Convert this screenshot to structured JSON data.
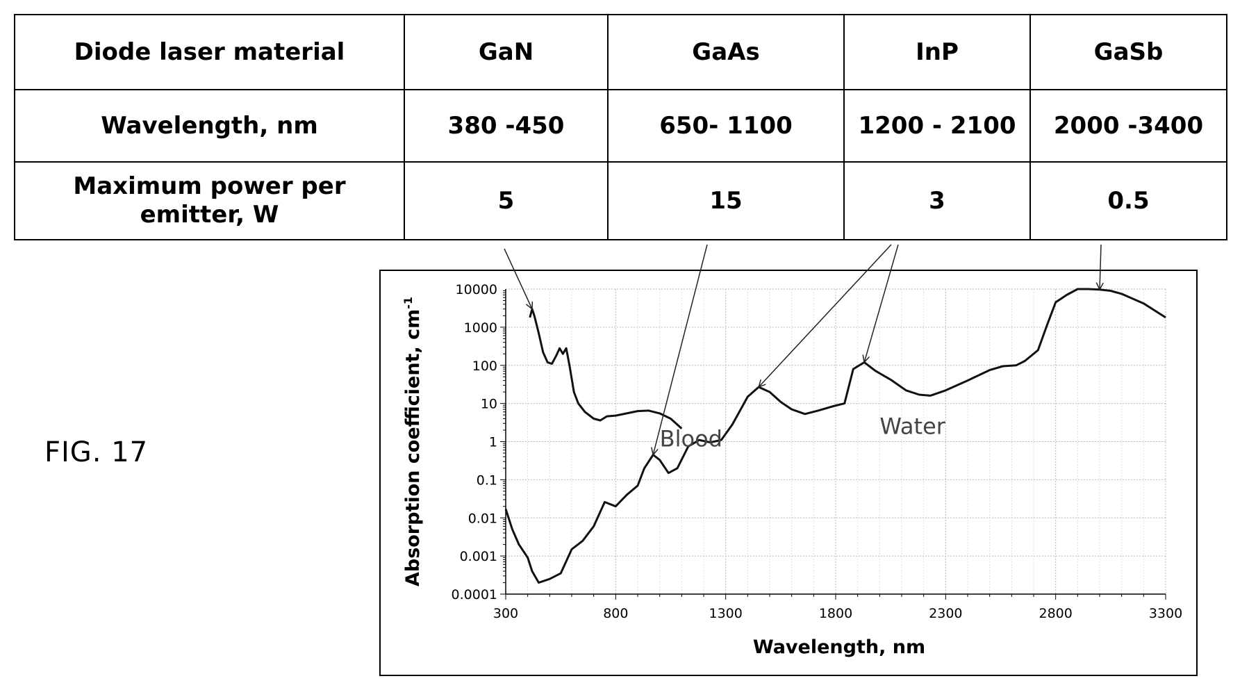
{
  "table": {
    "header": [
      "Diode laser material",
      "GaN",
      "GaAs",
      "InP",
      "GaSb"
    ],
    "rows": [
      [
        "Wavelength, nm",
        "380 -450",
        "650- 1100",
        "1200 - 2100",
        "2000 -3400"
      ],
      [
        "Maximum power per emitter, W",
        "5",
        "15",
        "3",
        "0.5"
      ]
    ]
  },
  "figure_label": "FIG. 17",
  "chart_data": {
    "type": "line",
    "xlabel": "Wavelength, nm",
    "ylabel": "Absorption coefficient, cm",
    "ylabel_superscript": "-1",
    "x_scale": "linear",
    "y_scale": "log",
    "xlim": [
      300,
      3300
    ],
    "ylim": [
      0.0001,
      10000
    ],
    "x_ticks": [
      "300",
      "800",
      "1300",
      "1800",
      "2300",
      "2800",
      "3300"
    ],
    "y_ticks": [
      "0.0001",
      "0.001",
      "0.01",
      "0.1",
      "1",
      "10",
      "100",
      "1000",
      "10000"
    ],
    "grid": true,
    "series": [
      {
        "name": "Blood",
        "points": [
          [
            410,
            1800
          ],
          [
            420,
            3000
          ],
          [
            430,
            2000
          ],
          [
            450,
            700
          ],
          [
            470,
            220
          ],
          [
            490,
            120
          ],
          [
            510,
            110
          ],
          [
            530,
            180
          ],
          [
            545,
            280
          ],
          [
            560,
            200
          ],
          [
            575,
            280
          ],
          [
            590,
            100
          ],
          [
            610,
            20
          ],
          [
            630,
            10
          ],
          [
            660,
            6
          ],
          [
            700,
            4
          ],
          [
            730,
            3.6
          ],
          [
            760,
            4.6
          ],
          [
            800,
            4.8
          ],
          [
            850,
            5.5
          ],
          [
            900,
            6.3
          ],
          [
            950,
            6.5
          ],
          [
            1000,
            5.5
          ],
          [
            1050,
            4
          ],
          [
            1100,
            2.2
          ]
        ]
      },
      {
        "name": "Water",
        "points": [
          [
            300,
            0.017
          ],
          [
            330,
            0.005
          ],
          [
            360,
            0.002
          ],
          [
            400,
            0.0009
          ],
          [
            420,
            0.0004
          ],
          [
            450,
            0.0002
          ],
          [
            500,
            0.00025
          ],
          [
            550,
            0.00035
          ],
          [
            600,
            0.0015
          ],
          [
            650,
            0.0025
          ],
          [
            700,
            0.006
          ],
          [
            750,
            0.026
          ],
          [
            800,
            0.02
          ],
          [
            850,
            0.04
          ],
          [
            900,
            0.07
          ],
          [
            930,
            0.2
          ],
          [
            970,
            0.45
          ],
          [
            1000,
            0.33
          ],
          [
            1040,
            0.15
          ],
          [
            1080,
            0.2
          ],
          [
            1130,
            0.75
          ],
          [
            1180,
            1.1
          ],
          [
            1230,
            0.95
          ],
          [
            1280,
            1.1
          ],
          [
            1330,
            2.8
          ],
          [
            1400,
            15
          ],
          [
            1450,
            27
          ],
          [
            1500,
            20
          ],
          [
            1550,
            11
          ],
          [
            1600,
            7
          ],
          [
            1660,
            5.3
          ],
          [
            1720,
            6.5
          ],
          [
            1790,
            8.5
          ],
          [
            1840,
            10
          ],
          [
            1880,
            80
          ],
          [
            1930,
            120
          ],
          [
            1980,
            72
          ],
          [
            2050,
            42
          ],
          [
            2120,
            22
          ],
          [
            2180,
            17
          ],
          [
            2230,
            16
          ],
          [
            2300,
            22
          ],
          [
            2400,
            40
          ],
          [
            2500,
            75
          ],
          [
            2560,
            95
          ],
          [
            2620,
            100
          ],
          [
            2660,
            130
          ],
          [
            2720,
            250
          ],
          [
            2760,
            1100
          ],
          [
            2800,
            4500
          ],
          [
            2850,
            7000
          ],
          [
            2900,
            10000
          ],
          [
            2950,
            10000
          ],
          [
            3000,
            9700
          ],
          [
            3050,
            9000
          ],
          [
            3100,
            7500
          ],
          [
            3200,
            4200
          ],
          [
            3300,
            1800
          ]
        ]
      }
    ],
    "arrows_from_table": [
      "GaN",
      "GaAs",
      "InP",
      "GaSb"
    ]
  }
}
